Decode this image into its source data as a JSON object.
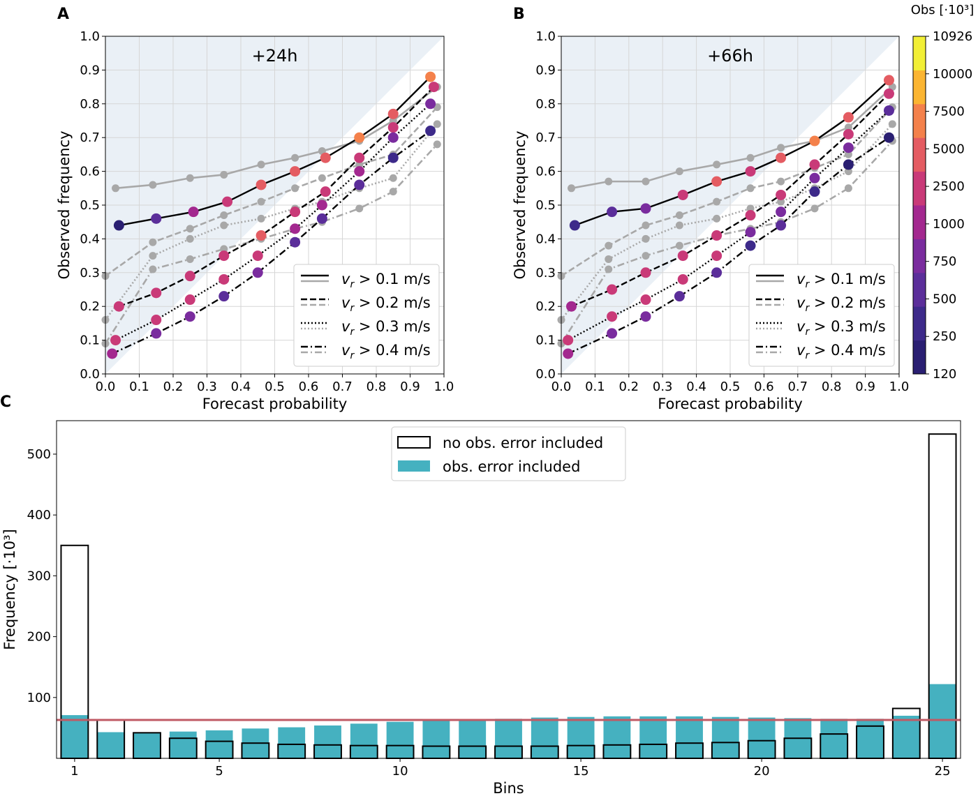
{
  "panels": {
    "a": {
      "letter": "A",
      "title": "+24h"
    },
    "b": {
      "letter": "B",
      "title": "+66h"
    },
    "c": {
      "letter": "C"
    }
  },
  "reliability": {
    "xlabel": "Forecast probability",
    "ylabel": "Observed frequency",
    "ticks": [
      "0.0",
      "0.1",
      "0.2",
      "0.3",
      "0.4",
      "0.5",
      "0.6",
      "0.7",
      "0.8",
      "0.9",
      "1.0"
    ],
    "legend": [
      {
        "label": "v_r > 0.1 m/s",
        "dash": "solid"
      },
      {
        "label": "v_r > 0.2 m/s",
        "dash": "dashed"
      },
      {
        "label": "v_r > 0.3 m/s",
        "dash": "dotted"
      },
      {
        "label": "v_r > 0.4 m/s",
        "dash": "dashdot"
      }
    ]
  },
  "colorbar": {
    "title": "Obs [·10³]",
    "ticks": [
      "120",
      "250",
      "500",
      "750",
      "1000",
      "2500",
      "5000",
      "7500",
      "10000",
      "10926"
    ],
    "colors": [
      "#2a1f72",
      "#3d2a8a",
      "#5b2e9a",
      "#7a2c9e",
      "#a3288f",
      "#c93a78",
      "#e45c62",
      "#f4814b",
      "#fbb532",
      "#f2ef36"
    ]
  },
  "histogram": {
    "xlabel": "Bins",
    "ylabel": "Frequency [·10³]",
    "xticks": [
      "1",
      "5",
      "10",
      "15",
      "20",
      "25"
    ],
    "yticks": [
      "100",
      "200",
      "300",
      "400",
      "500"
    ],
    "legend": {
      "outline": "no obs. error included",
      "filled": "obs. error included"
    }
  },
  "colors": {
    "teal": "#45b1c0",
    "redline": "#c05a64",
    "gray": "#a8a8a8",
    "black": "#000000",
    "shade": "#eaf0f6"
  },
  "chart_data": [
    {
      "type": "line",
      "title": "+24h",
      "xlabel": "Forecast probability",
      "ylabel": "Observed frequency",
      "xlim": [
        0,
        1
      ],
      "ylim": [
        0,
        1
      ],
      "colorbar_label": "Obs [·10³]",
      "series": [
        {
          "name": "v_r > 0.1 m/s (black)",
          "dash": "solid",
          "color": "black",
          "points": [
            [
              0.04,
              0.44,
              "#2a1f72"
            ],
            [
              0.15,
              0.46,
              "#5b2e9a"
            ],
            [
              0.26,
              0.48,
              "#a3288f"
            ],
            [
              0.36,
              0.51,
              "#c93a78"
            ],
            [
              0.46,
              0.56,
              "#e45c62"
            ],
            [
              0.56,
              0.6,
              "#e45c62"
            ],
            [
              0.65,
              0.64,
              "#e45c62"
            ],
            [
              0.75,
              0.7,
              "#f4814b"
            ],
            [
              0.85,
              0.77,
              "#e45c62"
            ],
            [
              0.96,
              0.88,
              "#f4814b"
            ]
          ]
        },
        {
          "name": "v_r > 0.2 m/s (black)",
          "dash": "dashed",
          "color": "black",
          "points": [
            [
              0.04,
              0.2,
              "#c93a78"
            ],
            [
              0.15,
              0.24,
              "#c93a78"
            ],
            [
              0.25,
              0.29,
              "#c93a78"
            ],
            [
              0.35,
              0.35,
              "#c93a78"
            ],
            [
              0.46,
              0.41,
              "#e45c62"
            ],
            [
              0.56,
              0.48,
              "#c93a78"
            ],
            [
              0.65,
              0.54,
              "#c93a78"
            ],
            [
              0.75,
              0.64,
              "#c93a78"
            ],
            [
              0.85,
              0.73,
              "#c93a78"
            ],
            [
              0.97,
              0.85,
              "#c93a78"
            ]
          ]
        },
        {
          "name": "v_r > 0.3 m/s (black)",
          "dash": "dotted",
          "color": "black",
          "points": [
            [
              0.03,
              0.1,
              "#c93a78"
            ],
            [
              0.15,
              0.16,
              "#c93a78"
            ],
            [
              0.25,
              0.22,
              "#c93a78"
            ],
            [
              0.35,
              0.28,
              "#c93a78"
            ],
            [
              0.45,
              0.35,
              "#c93a78"
            ],
            [
              0.56,
              0.43,
              "#a3288f"
            ],
            [
              0.64,
              0.5,
              "#a3288f"
            ],
            [
              0.75,
              0.6,
              "#a3288f"
            ],
            [
              0.85,
              0.7,
              "#7a2c9e"
            ],
            [
              0.96,
              0.8,
              "#7a2c9e"
            ]
          ]
        },
        {
          "name": "v_r > 0.4 m/s (black)",
          "dash": "dashdot",
          "color": "black",
          "points": [
            [
              0.02,
              0.06,
              "#a3288f"
            ],
            [
              0.15,
              0.12,
              "#7a2c9e"
            ],
            [
              0.25,
              0.17,
              "#7a2c9e"
            ],
            [
              0.35,
              0.23,
              "#5b2e9a"
            ],
            [
              0.45,
              0.3,
              "#7a2c9e"
            ],
            [
              0.56,
              0.39,
              "#5b2e9a"
            ],
            [
              0.64,
              0.46,
              "#5b2e9a"
            ],
            [
              0.75,
              0.56,
              "#5b2e9a"
            ],
            [
              0.85,
              0.64,
              "#3d2a8a"
            ],
            [
              0.96,
              0.72,
              "#3d2a8a"
            ]
          ]
        },
        {
          "name": "v_r > 0.1 m/s (gray)",
          "dash": "solid",
          "color": "gray",
          "points": [
            [
              0.03,
              0.55
            ],
            [
              0.14,
              0.56
            ],
            [
              0.25,
              0.58
            ],
            [
              0.35,
              0.59
            ],
            [
              0.46,
              0.62
            ],
            [
              0.56,
              0.64
            ],
            [
              0.64,
              0.66
            ],
            [
              0.75,
              0.69
            ],
            [
              0.85,
              0.75
            ],
            [
              0.98,
              0.85
            ]
          ]
        },
        {
          "name": "v_r > 0.2 m/s (gray)",
          "dash": "dashed",
          "color": "gray",
          "points": [
            [
              0.0,
              0.29
            ],
            [
              0.14,
              0.39
            ],
            [
              0.25,
              0.43
            ],
            [
              0.35,
              0.47
            ],
            [
              0.46,
              0.51
            ],
            [
              0.56,
              0.55
            ],
            [
              0.64,
              0.58
            ],
            [
              0.75,
              0.62
            ],
            [
              0.85,
              0.65
            ],
            [
              0.98,
              0.79
            ]
          ]
        },
        {
          "name": "v_r > 0.3 m/s (gray)",
          "dash": "dotted",
          "color": "gray",
          "points": [
            [
              0.0,
              0.16
            ],
            [
              0.14,
              0.35
            ],
            [
              0.25,
              0.4
            ],
            [
              0.35,
              0.44
            ],
            [
              0.46,
              0.46
            ],
            [
              0.56,
              0.49
            ],
            [
              0.64,
              0.51
            ],
            [
              0.75,
              0.55
            ],
            [
              0.85,
              0.58
            ],
            [
              0.98,
              0.74
            ]
          ]
        },
        {
          "name": "v_r > 0.4 m/s (gray)",
          "dash": "dashdot",
          "color": "gray",
          "points": [
            [
              0.0,
              0.09
            ],
            [
              0.14,
              0.31
            ],
            [
              0.25,
              0.34
            ],
            [
              0.35,
              0.37
            ],
            [
              0.46,
              0.4
            ],
            [
              0.56,
              0.43
            ],
            [
              0.64,
              0.45
            ],
            [
              0.75,
              0.49
            ],
            [
              0.85,
              0.54
            ],
            [
              0.98,
              0.68
            ]
          ]
        }
      ]
    },
    {
      "type": "line",
      "title": "+66h",
      "xlabel": "Forecast probability",
      "ylabel": "Observed frequency",
      "xlim": [
        0,
        1
      ],
      "ylim": [
        0,
        1
      ],
      "series": [
        {
          "name": "v_r > 0.1 m/s (black)",
          "dash": "solid",
          "color": "black",
          "points": [
            [
              0.04,
              0.44,
              "#3d2a8a"
            ],
            [
              0.15,
              0.48,
              "#5b2e9a"
            ],
            [
              0.25,
              0.49,
              "#7a2c9e"
            ],
            [
              0.36,
              0.53,
              "#c93a78"
            ],
            [
              0.46,
              0.57,
              "#e45c62"
            ],
            [
              0.56,
              0.6,
              "#c93a78"
            ],
            [
              0.65,
              0.64,
              "#e45c62"
            ],
            [
              0.75,
              0.69,
              "#f4814b"
            ],
            [
              0.85,
              0.76,
              "#e45c62"
            ],
            [
              0.97,
              0.87,
              "#e45c62"
            ]
          ]
        },
        {
          "name": "v_r > 0.2 m/s (black)",
          "dash": "dashed",
          "color": "black",
          "points": [
            [
              0.03,
              0.2,
              "#a3288f"
            ],
            [
              0.15,
              0.25,
              "#c93a78"
            ],
            [
              0.25,
              0.3,
              "#c93a78"
            ],
            [
              0.36,
              0.35,
              "#c93a78"
            ],
            [
              0.46,
              0.41,
              "#c93a78"
            ],
            [
              0.56,
              0.47,
              "#c93a78"
            ],
            [
              0.65,
              0.53,
              "#c93a78"
            ],
            [
              0.75,
              0.62,
              "#c93a78"
            ],
            [
              0.85,
              0.71,
              "#c93a78"
            ],
            [
              0.97,
              0.83,
              "#c93a78"
            ]
          ]
        },
        {
          "name": "v_r > 0.3 m/s (black)",
          "dash": "dotted",
          "color": "black",
          "points": [
            [
              0.02,
              0.1,
              "#c93a78"
            ],
            [
              0.15,
              0.17,
              "#c93a78"
            ],
            [
              0.25,
              0.22,
              "#c93a78"
            ],
            [
              0.36,
              0.28,
              "#c93a78"
            ],
            [
              0.46,
              0.35,
              "#c93a78"
            ],
            [
              0.56,
              0.42,
              "#7a2c9e"
            ],
            [
              0.65,
              0.48,
              "#7a2c9e"
            ],
            [
              0.75,
              0.58,
              "#7a2c9e"
            ],
            [
              0.85,
              0.67,
              "#7a2c9e"
            ],
            [
              0.97,
              0.78,
              "#5b2e9a"
            ]
          ]
        },
        {
          "name": "v_r > 0.4 m/s (black)",
          "dash": "dashdot",
          "color": "black",
          "points": [
            [
              0.02,
              0.06,
              "#a3288f"
            ],
            [
              0.15,
              0.12,
              "#7a2c9e"
            ],
            [
              0.25,
              0.17,
              "#7a2c9e"
            ],
            [
              0.35,
              0.23,
              "#5b2e9a"
            ],
            [
              0.46,
              0.3,
              "#5b2e9a"
            ],
            [
              0.56,
              0.38,
              "#3d2a8a"
            ],
            [
              0.65,
              0.44,
              "#5b2e9a"
            ],
            [
              0.75,
              0.54,
              "#3d2a8a"
            ],
            [
              0.85,
              0.62,
              "#2a1f72"
            ],
            [
              0.97,
              0.7,
              "#2a1f72"
            ]
          ]
        },
        {
          "name": "v_r > 0.1 m/s (gray)",
          "dash": "solid",
          "color": "gray",
          "points": [
            [
              0.03,
              0.55
            ],
            [
              0.14,
              0.57
            ],
            [
              0.25,
              0.57
            ],
            [
              0.35,
              0.6
            ],
            [
              0.46,
              0.62
            ],
            [
              0.56,
              0.64
            ],
            [
              0.65,
              0.67
            ],
            [
              0.75,
              0.69
            ],
            [
              0.85,
              0.73
            ],
            [
              0.98,
              0.85
            ]
          ]
        },
        {
          "name": "v_r > 0.2 m/s (gray)",
          "dash": "dashed",
          "color": "gray",
          "points": [
            [
              0.0,
              0.29
            ],
            [
              0.14,
              0.38
            ],
            [
              0.25,
              0.44
            ],
            [
              0.35,
              0.47
            ],
            [
              0.46,
              0.51
            ],
            [
              0.56,
              0.55
            ],
            [
              0.65,
              0.57
            ],
            [
              0.75,
              0.61
            ],
            [
              0.85,
              0.65
            ],
            [
              0.98,
              0.79
            ]
          ]
        },
        {
          "name": "v_r > 0.3 m/s (gray)",
          "dash": "dotted",
          "color": "gray",
          "points": [
            [
              0.0,
              0.16
            ],
            [
              0.14,
              0.34
            ],
            [
              0.25,
              0.4
            ],
            [
              0.35,
              0.44
            ],
            [
              0.46,
              0.46
            ],
            [
              0.56,
              0.49
            ],
            [
              0.65,
              0.51
            ],
            [
              0.75,
              0.55
            ],
            [
              0.85,
              0.6
            ],
            [
              0.98,
              0.74
            ]
          ]
        },
        {
          "name": "v_r > 0.4 m/s (gray)",
          "dash": "dashdot",
          "color": "gray",
          "points": [
            [
              0.0,
              0.09
            ],
            [
              0.14,
              0.31
            ],
            [
              0.25,
              0.35
            ],
            [
              0.35,
              0.38
            ],
            [
              0.46,
              0.41
            ],
            [
              0.56,
              0.43
            ],
            [
              0.65,
              0.45
            ],
            [
              0.75,
              0.49
            ],
            [
              0.85,
              0.55
            ],
            [
              0.98,
              0.69
            ]
          ]
        }
      ]
    },
    {
      "type": "bar",
      "xlabel": "Bins",
      "ylabel": "Frequency [·10³]",
      "ylim": [
        0,
        555
      ],
      "xlim": [
        0.5,
        25.5
      ],
      "bins": [
        1,
        2,
        3,
        4,
        5,
        6,
        7,
        8,
        9,
        10,
        11,
        12,
        13,
        14,
        15,
        16,
        17,
        18,
        19,
        20,
        21,
        22,
        23,
        24,
        25
      ],
      "series": [
        {
          "name": "no obs. error included",
          "style": "outline",
          "values": [
            350,
            63,
            42,
            33,
            28,
            25,
            23,
            22,
            21,
            21,
            20,
            20,
            20,
            20,
            21,
            22,
            23,
            25,
            26,
            29,
            33,
            40,
            53,
            82,
            533
          ]
        },
        {
          "name": "obs. error included",
          "style": "filled",
          "values": [
            71,
            43,
            42,
            44,
            46,
            49,
            51,
            54,
            57,
            60,
            62,
            63,
            65,
            67,
            68,
            69,
            69,
            69,
            68,
            67,
            66,
            65,
            65,
            70,
            122
          ]
        }
      ],
      "reference_line": 63
    }
  ]
}
